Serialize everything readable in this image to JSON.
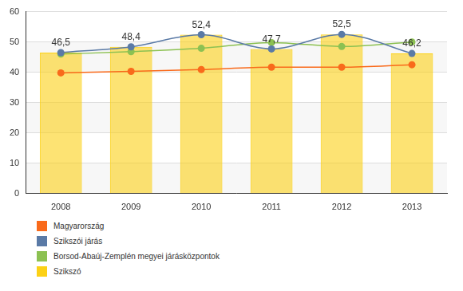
{
  "chart_data": {
    "type": "bar",
    "categories": [
      "2008",
      "2009",
      "2010",
      "2011",
      "2012",
      "2013"
    ],
    "series": [
      {
        "name": "Magyarország",
        "type": "line",
        "color": "#f96a1b",
        "marker": "circle",
        "values": [
          39.8,
          40.3,
          40.9,
          41.7,
          41.7,
          42.5
        ]
      },
      {
        "name": "Szikszói járás",
        "type": "line",
        "color": "#5a7aa6",
        "marker": "circle",
        "values": [
          46.5,
          48.4,
          52.4,
          47.7,
          52.5,
          46.2
        ]
      },
      {
        "name": "Borsod-Abaúj-Zemplén megyei járásközpontok",
        "type": "line",
        "color": "#8cc152",
        "marker": "circle",
        "values": [
          46.0,
          46.8,
          47.9,
          49.8,
          48.5,
          50.0
        ]
      },
      {
        "name": "Szikszó",
        "type": "bar",
        "color": "#fcd116",
        "values": [
          46.5,
          48.4,
          52.4,
          47.7,
          52.5,
          46.2
        ],
        "value_labels": [
          "46,5",
          "48,4",
          "52,4",
          "47,7",
          "52,5",
          "46,2"
        ]
      }
    ],
    "ylim": [
      0,
      60
    ],
    "yticks": [
      0,
      10,
      20,
      30,
      40,
      50,
      60
    ],
    "grid": true,
    "legend": "bottom",
    "data_labels": true
  }
}
